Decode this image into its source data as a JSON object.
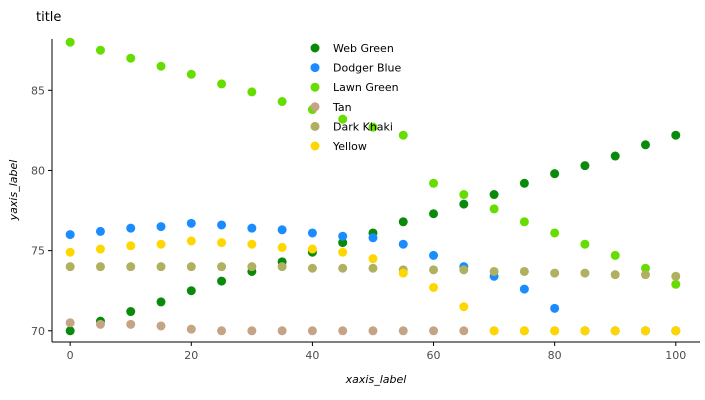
{
  "chart_data": {
    "type": "scatter",
    "title": "title",
    "xlabel": "xaxis_label",
    "ylabel": "yaxis_label",
    "xlim": [
      -3,
      104
    ],
    "ylim": [
      69.3,
      88.2
    ],
    "x_ticks": [
      0,
      20,
      40,
      60,
      80,
      100
    ],
    "y_ticks": [
      70,
      75,
      80,
      85
    ],
    "grid": false,
    "legend_position": "top-center",
    "x": [
      0,
      5,
      10,
      15,
      20,
      25,
      30,
      35,
      40,
      45,
      50,
      55,
      60,
      65,
      70,
      75,
      80,
      85,
      90,
      95,
      100
    ],
    "series": [
      {
        "name": "Web Green",
        "color": "#0a8a0a",
        "values": [
          70.0,
          70.6,
          71.2,
          71.8,
          72.5,
          73.1,
          73.7,
          74.3,
          74.9,
          75.5,
          76.1,
          76.8,
          77.3,
          77.9,
          78.5,
          79.2,
          79.8,
          80.3,
          80.9,
          81.6,
          82.2
        ]
      },
      {
        "name": "Dodger Blue",
        "color": "#1a8cff",
        "values": [
          76.0,
          76.2,
          76.4,
          76.5,
          76.7,
          76.6,
          76.4,
          76.3,
          76.1,
          75.9,
          75.8,
          75.4,
          74.7,
          74.0,
          73.4,
          72.6,
          71.4,
          70.0,
          70.0,
          70.0,
          70.0
        ]
      },
      {
        "name": "Lawn Green",
        "color": "#66dd00",
        "values": [
          88.0,
          87.5,
          87.0,
          86.5,
          86.0,
          85.4,
          84.9,
          84.3,
          83.8,
          83.2,
          82.7,
          82.2,
          79.2,
          78.5,
          77.6,
          76.8,
          76.1,
          75.4,
          74.7,
          73.9,
          72.9
        ]
      },
      {
        "name": "Tan",
        "color": "#c4a484",
        "values": [
          70.5,
          70.4,
          70.4,
          70.3,
          70.1,
          70.0,
          70.0,
          70.0,
          70.0,
          70.0,
          70.0,
          70.0,
          70.0,
          70.0,
          70.0,
          70.0,
          70.0,
          70.0,
          70.0,
          70.0,
          70.0
        ]
      },
      {
        "name": "Dark Khaki",
        "color": "#b0b060",
        "values": [
          74.0,
          74.0,
          74.0,
          74.0,
          74.0,
          74.0,
          74.0,
          74.0,
          73.9,
          73.9,
          73.9,
          73.8,
          73.8,
          73.8,
          73.7,
          73.7,
          73.6,
          73.6,
          73.5,
          73.5,
          73.4
        ]
      },
      {
        "name": "Yellow",
        "color": "#ffd700",
        "values": [
          74.9,
          75.1,
          75.3,
          75.4,
          75.6,
          75.5,
          75.4,
          75.2,
          75.1,
          74.9,
          74.5,
          73.6,
          72.7,
          71.5,
          70.0,
          70.0,
          70.0,
          70.0,
          70.0,
          70.0,
          70.0
        ]
      }
    ]
  }
}
